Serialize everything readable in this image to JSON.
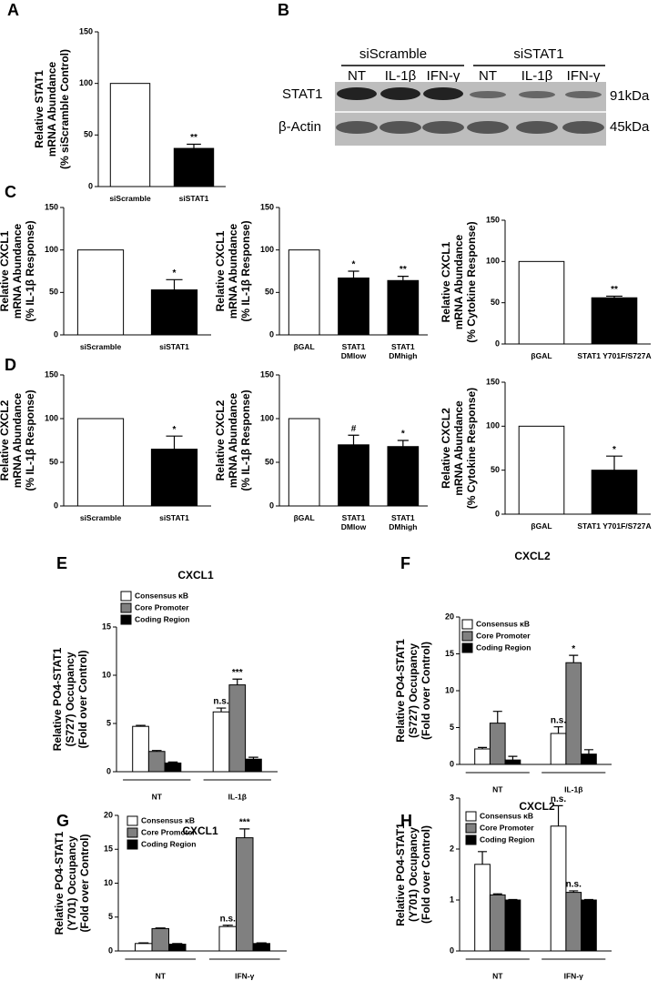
{
  "chart_data": [
    {
      "type": "bar",
      "panel": "A",
      "ylabel": [
        "Relative STAT1",
        "mRNA Abundance",
        "(% siScramble Control)"
      ],
      "categories": [
        [
          "siScramble"
        ],
        [
          "siSTAT1"
        ]
      ],
      "values": [
        100,
        37
      ],
      "errors": [
        0,
        4
      ],
      "colors": [
        "#ffffff",
        "#000000"
      ],
      "ylim": [
        0,
        150
      ],
      "yticks": [
        0,
        50,
        100,
        150
      ],
      "annotations": [
        {
          "category": 1,
          "text": "**"
        }
      ]
    },
    {
      "type": "bar",
      "panel": "C",
      "ylabel": [
        "Relative CXCL1",
        "mRNA Abundance",
        "(% IL-1β Response)"
      ],
      "categories": [
        [
          "siScramble"
        ],
        [
          "siSTAT1"
        ]
      ],
      "values": [
        100,
        53
      ],
      "errors": [
        0,
        12
      ],
      "colors": [
        "#ffffff",
        "#000000"
      ],
      "ylim": [
        0,
        150
      ],
      "yticks": [
        0,
        50,
        100,
        150
      ],
      "annotations": [
        {
          "category": 1,
          "text": "*"
        }
      ]
    },
    {
      "type": "bar",
      "ylabel": [
        "Relative CXCL1",
        "mRNA Abundance",
        "(% IL-1β Response)"
      ],
      "categories": [
        [
          "βGAL"
        ],
        [
          "STAT1",
          "DMlow"
        ],
        [
          "STAT1",
          "DMhigh"
        ]
      ],
      "values": [
        100,
        67,
        64
      ],
      "errors": [
        0,
        8,
        5
      ],
      "colors": [
        "#ffffff",
        "#000000",
        "#000000"
      ],
      "ylim": [
        0,
        150
      ],
      "yticks": [
        0,
        50,
        100,
        150
      ],
      "annotations": [
        {
          "category": 1,
          "text": "*"
        },
        {
          "category": 2,
          "text": "**"
        }
      ]
    },
    {
      "type": "bar",
      "ylabel": [
        "Relative CXCL1",
        "mRNA Abundance",
        "(% Cytokine Response)"
      ],
      "categories": [
        [
          "βGAL"
        ],
        [
          "STAT1 Y701F/S727A"
        ]
      ],
      "values": [
        100,
        56
      ],
      "errors": [
        0,
        2
      ],
      "colors": [
        "#ffffff",
        "#000000"
      ],
      "ylim": [
        0,
        150
      ],
      "yticks": [
        0,
        50,
        100,
        150
      ],
      "annotations": [
        {
          "category": 1,
          "text": "**"
        }
      ]
    },
    {
      "type": "bar",
      "panel": "D",
      "ylabel": [
        "Relative CXCL2",
        "mRNA Abundance",
        "(% IL-1β Response)"
      ],
      "categories": [
        [
          "siScramble"
        ],
        [
          "siSTAT1"
        ]
      ],
      "values": [
        100,
        65
      ],
      "errors": [
        0,
        15
      ],
      "colors": [
        "#ffffff",
        "#000000"
      ],
      "ylim": [
        0,
        150
      ],
      "yticks": [
        0,
        50,
        100,
        150
      ],
      "annotations": [
        {
          "category": 1,
          "text": "*"
        }
      ]
    },
    {
      "type": "bar",
      "ylabel": [
        "Relative CXCL2",
        "mRNA Abundance",
        "(% IL-1β Response)"
      ],
      "categories": [
        [
          "βGAL"
        ],
        [
          "STAT1",
          "DMlow"
        ],
        [
          "STAT1",
          "DMhigh"
        ]
      ],
      "values": [
        100,
        70,
        68
      ],
      "errors": [
        0,
        11,
        7
      ],
      "colors": [
        "#ffffff",
        "#000000",
        "#000000"
      ],
      "ylim": [
        0,
        150
      ],
      "yticks": [
        0,
        50,
        100,
        150
      ],
      "annotations": [
        {
          "category": 1,
          "text": "#"
        },
        {
          "category": 2,
          "text": "*"
        }
      ]
    },
    {
      "type": "bar",
      "ylabel": [
        "Relative CXCL2",
        "mRNA Abundance",
        "(% Cytokine Response)"
      ],
      "categories": [
        [
          "βGAL"
        ],
        [
          "STAT1 Y701F/S727A"
        ]
      ],
      "values": [
        100,
        50
      ],
      "errors": [
        0,
        16
      ],
      "colors": [
        "#ffffff",
        "#000000"
      ],
      "ylim": [
        0,
        150
      ],
      "yticks": [
        0,
        50,
        100,
        150
      ],
      "annotations": [
        {
          "category": 1,
          "text": "*"
        }
      ]
    },
    {
      "type": "grouped",
      "panel": "E",
      "title": "CXCL1",
      "ylabel": [
        "Relative PO4-STAT1",
        "(S727) Occupancy",
        "(Fold over Control)"
      ],
      "categories": [
        "NT",
        "IL-1β"
      ],
      "series": [
        {
          "name": "Consensus κB",
          "color": "#ffffff",
          "values": [
            4.7,
            6.2
          ],
          "errors": [
            0.1,
            0.4
          ]
        },
        {
          "name": "Core Promoter",
          "color": "#808080",
          "values": [
            2.1,
            9.0
          ],
          "errors": [
            0.1,
            0.6
          ]
        },
        {
          "name": "Coding Region",
          "color": "#000000",
          "values": [
            0.9,
            1.3
          ],
          "errors": [
            0.1,
            0.2
          ]
        }
      ],
      "ylim": [
        0,
        15
      ],
      "yticks": [
        0,
        5,
        10,
        15
      ],
      "annotations": [
        {
          "series": 0,
          "category": 1,
          "text": "n.s."
        },
        {
          "series": 1,
          "category": 1,
          "text": "***"
        }
      ]
    },
    {
      "type": "grouped",
      "panel": "F",
      "title": "CXCL2",
      "ylabel": [
        "Relative PO4-STAT1",
        "(S727) Occupancy",
        "(Fold over Control)"
      ],
      "categories": [
        "NT",
        "IL-1β"
      ],
      "series": [
        {
          "name": "Consensus κB",
          "color": "#ffffff",
          "values": [
            2.1,
            4.2
          ],
          "errors": [
            0.2,
            0.9
          ]
        },
        {
          "name": "Core Promoter",
          "color": "#808080",
          "values": [
            5.6,
            13.8
          ],
          "errors": [
            1.6,
            1.0
          ]
        },
        {
          "name": "Coding Region",
          "color": "#000000",
          "values": [
            0.6,
            1.4
          ],
          "errors": [
            0.5,
            0.6
          ]
        }
      ],
      "ylim": [
        0,
        20
      ],
      "yticks": [
        0,
        5,
        10,
        15,
        20
      ],
      "annotations": [
        {
          "series": 0,
          "category": 1,
          "text": "n.s."
        },
        {
          "series": 1,
          "category": 1,
          "text": "*"
        }
      ]
    },
    {
      "type": "grouped",
      "panel": "G",
      "title": "CXCL1",
      "ylabel": [
        "Relative PO4-STAT1",
        "(Y701) Occupancy",
        "(Fold over Control)"
      ],
      "categories": [
        "NT",
        "IFN-γ"
      ],
      "series": [
        {
          "name": "Consensus κB",
          "color": "#ffffff",
          "values": [
            1.1,
            3.6
          ],
          "errors": [
            0.1,
            0.2
          ]
        },
        {
          "name": "Core Promoter",
          "color": "#808080",
          "values": [
            3.3,
            16.7
          ],
          "errors": [
            0.1,
            1.3
          ]
        },
        {
          "name": "Coding Region",
          "color": "#000000",
          "values": [
            1.0,
            1.1
          ],
          "errors": [
            0.1,
            0.1
          ]
        }
      ],
      "ylim": [
        0,
        20
      ],
      "yticks": [
        0,
        5,
        10,
        15,
        20
      ],
      "annotations": [
        {
          "series": 0,
          "category": 1,
          "text": "n.s."
        },
        {
          "series": 1,
          "category": 1,
          "text": "***"
        }
      ]
    },
    {
      "type": "grouped",
      "panel": "H",
      "title": "CXCL2",
      "ylabel": [
        "Relative PO4-STAT1",
        "(Y701) Occupancy",
        "(Fold over Control)"
      ],
      "categories": [
        "NT",
        "IFN-γ"
      ],
      "series": [
        {
          "name": "Consensus κB",
          "color": "#ffffff",
          "values": [
            1.7,
            2.45
          ],
          "errors": [
            0.25,
            0.4
          ]
        },
        {
          "name": "Core Promoter",
          "color": "#808080",
          "values": [
            1.1,
            1.15
          ],
          "errors": [
            0.02,
            0.03
          ]
        },
        {
          "name": "Coding Region",
          "color": "#000000",
          "values": [
            1.0,
            1.0
          ],
          "errors": [
            0.01,
            0.01
          ]
        }
      ],
      "ylim": [
        0,
        3
      ],
      "yticks": [
        0,
        1,
        2,
        3
      ],
      "annotations": [
        {
          "series": 0,
          "category": 1,
          "text": "n.s."
        },
        {
          "series": 1,
          "category": 1,
          "text": "n.s."
        }
      ]
    }
  ],
  "blot": {
    "panel": "B",
    "groups": [
      "siScramble",
      "siSTAT1"
    ],
    "lanes": [
      "NT",
      "IL-1β",
      "IFN-γ",
      "NT",
      "IL-1β",
      "IFN-γ"
    ],
    "rows": [
      "STAT1",
      "β-Actin"
    ],
    "sizes": [
      "91kDa",
      "45kDa"
    ]
  }
}
